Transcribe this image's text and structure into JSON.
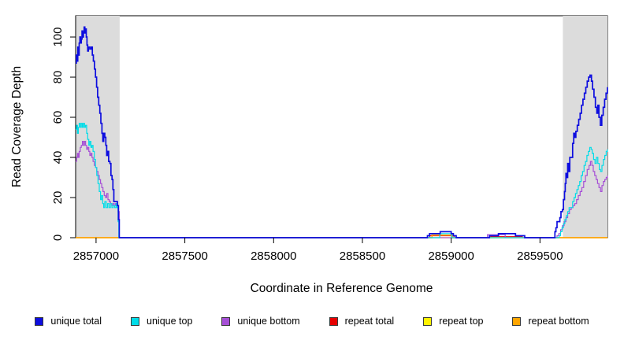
{
  "figure": {
    "xlabel": "Coordinate in Reference Genome",
    "ylabel": "Read Coverage Depth"
  },
  "legend": [
    {
      "label": "unique total",
      "color": "#0D0DDF"
    },
    {
      "label": "unique top",
      "color": "#00DCE8"
    },
    {
      "label": "unique bottom",
      "color": "#A64FD6"
    },
    {
      "label": "repeat total",
      "color": "#E60000"
    },
    {
      "label": "repeat top",
      "color": "#FFF200"
    },
    {
      "label": "repeat bottom",
      "color": "#FFA500"
    }
  ],
  "chart_data": {
    "type": "line",
    "title": "",
    "xlabel": "Coordinate in Reference Genome",
    "ylabel": "Read Coverage Depth",
    "xlim": [
      2856885,
      2859880
    ],
    "ylim": [
      0,
      110.6
    ],
    "x_ticks": [
      2857000,
      2857500,
      2858000,
      2858500,
      2859000,
      2859500
    ],
    "y_ticks": [
      0,
      20,
      40,
      60,
      80,
      100
    ],
    "grid": false,
    "step": true,
    "legend_position": "bottom",
    "shaded_regions": [
      {
        "x0": 2856885,
        "x1": 2857133,
        "color": "#DCDCDC"
      },
      {
        "x0": 2859629,
        "x1": 2859880,
        "color": "#DCDCDC"
      }
    ],
    "series": [
      {
        "name": "repeat total",
        "color": "#E60000",
        "width": 1.2,
        "points": [
          [
            2856885,
            0
          ],
          [
            2858872,
            0
          ],
          [
            2858880,
            1
          ],
          [
            2859008,
            1
          ],
          [
            2859016,
            0
          ],
          [
            2859214,
            0
          ],
          [
            2859222,
            0.5
          ],
          [
            2859392,
            0.5
          ],
          [
            2859400,
            0
          ],
          [
            2859880,
            0
          ]
        ]
      },
      {
        "name": "repeat top",
        "color": "#FFF200",
        "width": 1.2,
        "points": [
          [
            2856885,
            0
          ],
          [
            2859880,
            0
          ]
        ]
      },
      {
        "name": "repeat bottom",
        "color": "#FFA500",
        "width": 1.5,
        "points": [
          [
            2856885,
            0
          ],
          [
            2858884,
            0
          ],
          [
            2858892,
            1.3
          ],
          [
            2858998,
            1.3
          ],
          [
            2859006,
            0
          ],
          [
            2859880,
            0
          ]
        ]
      },
      {
        "name": "unique bottom",
        "color": "#A64FD6",
        "width": 1.2,
        "points": [
          [
            2856885,
            38
          ],
          [
            2856890,
            40
          ],
          [
            2856895,
            42
          ],
          [
            2856900,
            40
          ],
          [
            2856905,
            43
          ],
          [
            2856911,
            45
          ],
          [
            2856917,
            46
          ],
          [
            2856923,
            48
          ],
          [
            2856929,
            46
          ],
          [
            2856935,
            48
          ],
          [
            2856941,
            46
          ],
          [
            2856947,
            44
          ],
          [
            2856953,
            45
          ],
          [
            2856959,
            43
          ],
          [
            2856965,
            41
          ],
          [
            2856971,
            42
          ],
          [
            2856977,
            40
          ],
          [
            2856983,
            38
          ],
          [
            2856990,
            36
          ],
          [
            2856997,
            35
          ],
          [
            2857004,
            33
          ],
          [
            2857011,
            31
          ],
          [
            2857018,
            29
          ],
          [
            2857025,
            27
          ],
          [
            2857032,
            25
          ],
          [
            2857039,
            23
          ],
          [
            2857046,
            21
          ],
          [
            2857053,
            20
          ],
          [
            2857060,
            22
          ],
          [
            2857067,
            19
          ],
          [
            2857074,
            18
          ],
          [
            2857081,
            17
          ],
          [
            2857088,
            16
          ],
          [
            2857095,
            17
          ],
          [
            2857102,
            16
          ],
          [
            2857109,
            17
          ],
          [
            2857116,
            16
          ],
          [
            2857124,
            13
          ],
          [
            2857131,
            0
          ],
          [
            2859196,
            0
          ],
          [
            2859204,
            1.5
          ],
          [
            2859296,
            1.5
          ],
          [
            2859304,
            0
          ],
          [
            2859588,
            0
          ],
          [
            2859596,
            1
          ],
          [
            2859606,
            2
          ],
          [
            2859616,
            4
          ],
          [
            2859626,
            6
          ],
          [
            2859636,
            8
          ],
          [
            2859646,
            10
          ],
          [
            2859656,
            12
          ],
          [
            2859666,
            14
          ],
          [
            2859676,
            15
          ],
          [
            2859686,
            16
          ],
          [
            2859696,
            17
          ],
          [
            2859706,
            19
          ],
          [
            2859716,
            21
          ],
          [
            2859726,
            23
          ],
          [
            2859736,
            25
          ],
          [
            2859746,
            28
          ],
          [
            2859756,
            31
          ],
          [
            2859766,
            34
          ],
          [
            2859776,
            36
          ],
          [
            2859784,
            38
          ],
          [
            2859792,
            36
          ],
          [
            2859800,
            33
          ],
          [
            2859808,
            31
          ],
          [
            2859816,
            29
          ],
          [
            2859824,
            27
          ],
          [
            2859832,
            25
          ],
          [
            2859841,
            23
          ],
          [
            2859849,
            26
          ],
          [
            2859857,
            28
          ],
          [
            2859865,
            29
          ],
          [
            2859873,
            30
          ],
          [
            2859880,
            31
          ]
        ]
      },
      {
        "name": "unique top",
        "color": "#00DCE8",
        "width": 1.2,
        "points": [
          [
            2856885,
            54
          ],
          [
            2856890,
            56
          ],
          [
            2856895,
            52
          ],
          [
            2856900,
            55
          ],
          [
            2856905,
            57
          ],
          [
            2856911,
            55
          ],
          [
            2856917,
            57
          ],
          [
            2856923,
            55
          ],
          [
            2856929,
            57
          ],
          [
            2856935,
            55
          ],
          [
            2856941,
            56
          ],
          [
            2856947,
            52
          ],
          [
            2856953,
            49
          ],
          [
            2856959,
            46
          ],
          [
            2856965,
            48
          ],
          [
            2856971,
            45
          ],
          [
            2856977,
            46
          ],
          [
            2856983,
            43
          ],
          [
            2856990,
            39
          ],
          [
            2856997,
            35
          ],
          [
            2857004,
            31
          ],
          [
            2857011,
            27
          ],
          [
            2857018,
            23
          ],
          [
            2857025,
            19
          ],
          [
            2857031,
            21
          ],
          [
            2857037,
            17
          ],
          [
            2857043,
            15
          ],
          [
            2857049,
            18
          ],
          [
            2857057,
            15
          ],
          [
            2857065,
            17
          ],
          [
            2857073,
            15
          ],
          [
            2857081,
            17
          ],
          [
            2857089,
            15
          ],
          [
            2857097,
            16
          ],
          [
            2857105,
            15
          ],
          [
            2857113,
            17
          ],
          [
            2857119,
            15
          ],
          [
            2857124,
            8
          ],
          [
            2857128,
            0
          ],
          [
            2858926,
            0
          ],
          [
            2858936,
            2
          ],
          [
            2858994,
            2
          ],
          [
            2859002,
            0
          ],
          [
            2859600,
            0
          ],
          [
            2859608,
            1
          ],
          [
            2859616,
            3
          ],
          [
            2859624,
            5
          ],
          [
            2859632,
            7
          ],
          [
            2859640,
            9
          ],
          [
            2859648,
            11
          ],
          [
            2859656,
            13
          ],
          [
            2859664,
            15
          ],
          [
            2859676,
            15
          ],
          [
            2859684,
            18
          ],
          [
            2859692,
            20
          ],
          [
            2859700,
            22
          ],
          [
            2859708,
            24
          ],
          [
            2859716,
            26
          ],
          [
            2859724,
            28
          ],
          [
            2859732,
            31
          ],
          [
            2859740,
            33
          ],
          [
            2859748,
            36
          ],
          [
            2859756,
            38
          ],
          [
            2859764,
            41
          ],
          [
            2859772,
            43
          ],
          [
            2859780,
            45
          ],
          [
            2859788,
            44
          ],
          [
            2859794,
            42
          ],
          [
            2859802,
            39
          ],
          [
            2859810,
            37
          ],
          [
            2859818,
            40
          ],
          [
            2859826,
            37
          ],
          [
            2859834,
            34
          ],
          [
            2859841,
            33
          ],
          [
            2859849,
            36
          ],
          [
            2859857,
            39
          ],
          [
            2859865,
            41
          ],
          [
            2859873,
            43
          ],
          [
            2859880,
            44
          ]
        ]
      },
      {
        "name": "unique total",
        "color": "#0D0DDF",
        "width": 1.7,
        "points": [
          [
            2856885,
            87
          ],
          [
            2856889,
            91
          ],
          [
            2856893,
            88
          ],
          [
            2856897,
            95
          ],
          [
            2856901,
            91
          ],
          [
            2856905,
            97
          ],
          [
            2856909,
            100
          ],
          [
            2856913,
            97
          ],
          [
            2856917,
            99
          ],
          [
            2856921,
            103
          ],
          [
            2856925,
            100
          ],
          [
            2856929,
            102
          ],
          [
            2856933,
            105
          ],
          [
            2856937,
            102
          ],
          [
            2856941,
            104
          ],
          [
            2856945,
            100
          ],
          [
            2856949,
            96
          ],
          [
            2856953,
            93
          ],
          [
            2856957,
            95
          ],
          [
            2856965,
            94
          ],
          [
            2856973,
            95
          ],
          [
            2856979,
            91
          ],
          [
            2856985,
            88
          ],
          [
            2856991,
            84
          ],
          [
            2856997,
            80
          ],
          [
            2857003,
            75
          ],
          [
            2857009,
            70
          ],
          [
            2857015,
            66
          ],
          [
            2857021,
            62
          ],
          [
            2857027,
            57
          ],
          [
            2857033,
            52
          ],
          [
            2857038,
            48
          ],
          [
            2857043,
            52
          ],
          [
            2857049,
            50
          ],
          [
            2857055,
            46
          ],
          [
            2857060,
            41
          ],
          [
            2857065,
            43
          ],
          [
            2857071,
            38
          ],
          [
            2857078,
            37
          ],
          [
            2857084,
            31
          ],
          [
            2857090,
            29
          ],
          [
            2857095,
            24
          ],
          [
            2857100,
            18
          ],
          [
            2857112,
            18
          ],
          [
            2857120,
            16
          ],
          [
            2857126,
            9
          ],
          [
            2857131,
            0
          ],
          [
            2858858,
            0
          ],
          [
            2858866,
            1
          ],
          [
            2858878,
            2
          ],
          [
            2858930,
            2
          ],
          [
            2858938,
            3
          ],
          [
            2858992,
            3
          ],
          [
            2859000,
            2
          ],
          [
            2859012,
            1
          ],
          [
            2859028,
            0
          ],
          [
            2859205,
            0
          ],
          [
            2859215,
            1
          ],
          [
            2859258,
            1
          ],
          [
            2859266,
            2
          ],
          [
            2859352,
            2
          ],
          [
            2859362,
            1
          ],
          [
            2859408,
            1
          ],
          [
            2859414,
            0
          ],
          [
            2859576,
            0
          ],
          [
            2859584,
            3
          ],
          [
            2859590,
            5
          ],
          [
            2859596,
            8
          ],
          [
            2859606,
            8
          ],
          [
            2859612,
            10
          ],
          [
            2859618,
            13
          ],
          [
            2859626,
            14
          ],
          [
            2859632,
            19
          ],
          [
            2859638,
            23
          ],
          [
            2859642,
            27
          ],
          [
            2859646,
            32
          ],
          [
            2859652,
            30
          ],
          [
            2859656,
            37
          ],
          [
            2859662,
            33
          ],
          [
            2859668,
            40
          ],
          [
            2859678,
            40
          ],
          [
            2859684,
            47
          ],
          [
            2859690,
            52
          ],
          [
            2859696,
            50
          ],
          [
            2859702,
            53
          ],
          [
            2859710,
            56
          ],
          [
            2859718,
            59
          ],
          [
            2859726,
            62
          ],
          [
            2859734,
            66
          ],
          [
            2859742,
            69
          ],
          [
            2859750,
            72
          ],
          [
            2859758,
            75
          ],
          [
            2859766,
            78
          ],
          [
            2859774,
            80
          ],
          [
            2859782,
            81
          ],
          [
            2859790,
            78
          ],
          [
            2859796,
            74
          ],
          [
            2859804,
            70
          ],
          [
            2859812,
            65
          ],
          [
            2859820,
            62
          ],
          [
            2859826,
            66
          ],
          [
            2859832,
            60
          ],
          [
            2859840,
            56
          ],
          [
            2859848,
            61
          ],
          [
            2859856,
            65
          ],
          [
            2859864,
            69
          ],
          [
            2859872,
            72
          ],
          [
            2859880,
            75
          ]
        ]
      }
    ]
  }
}
